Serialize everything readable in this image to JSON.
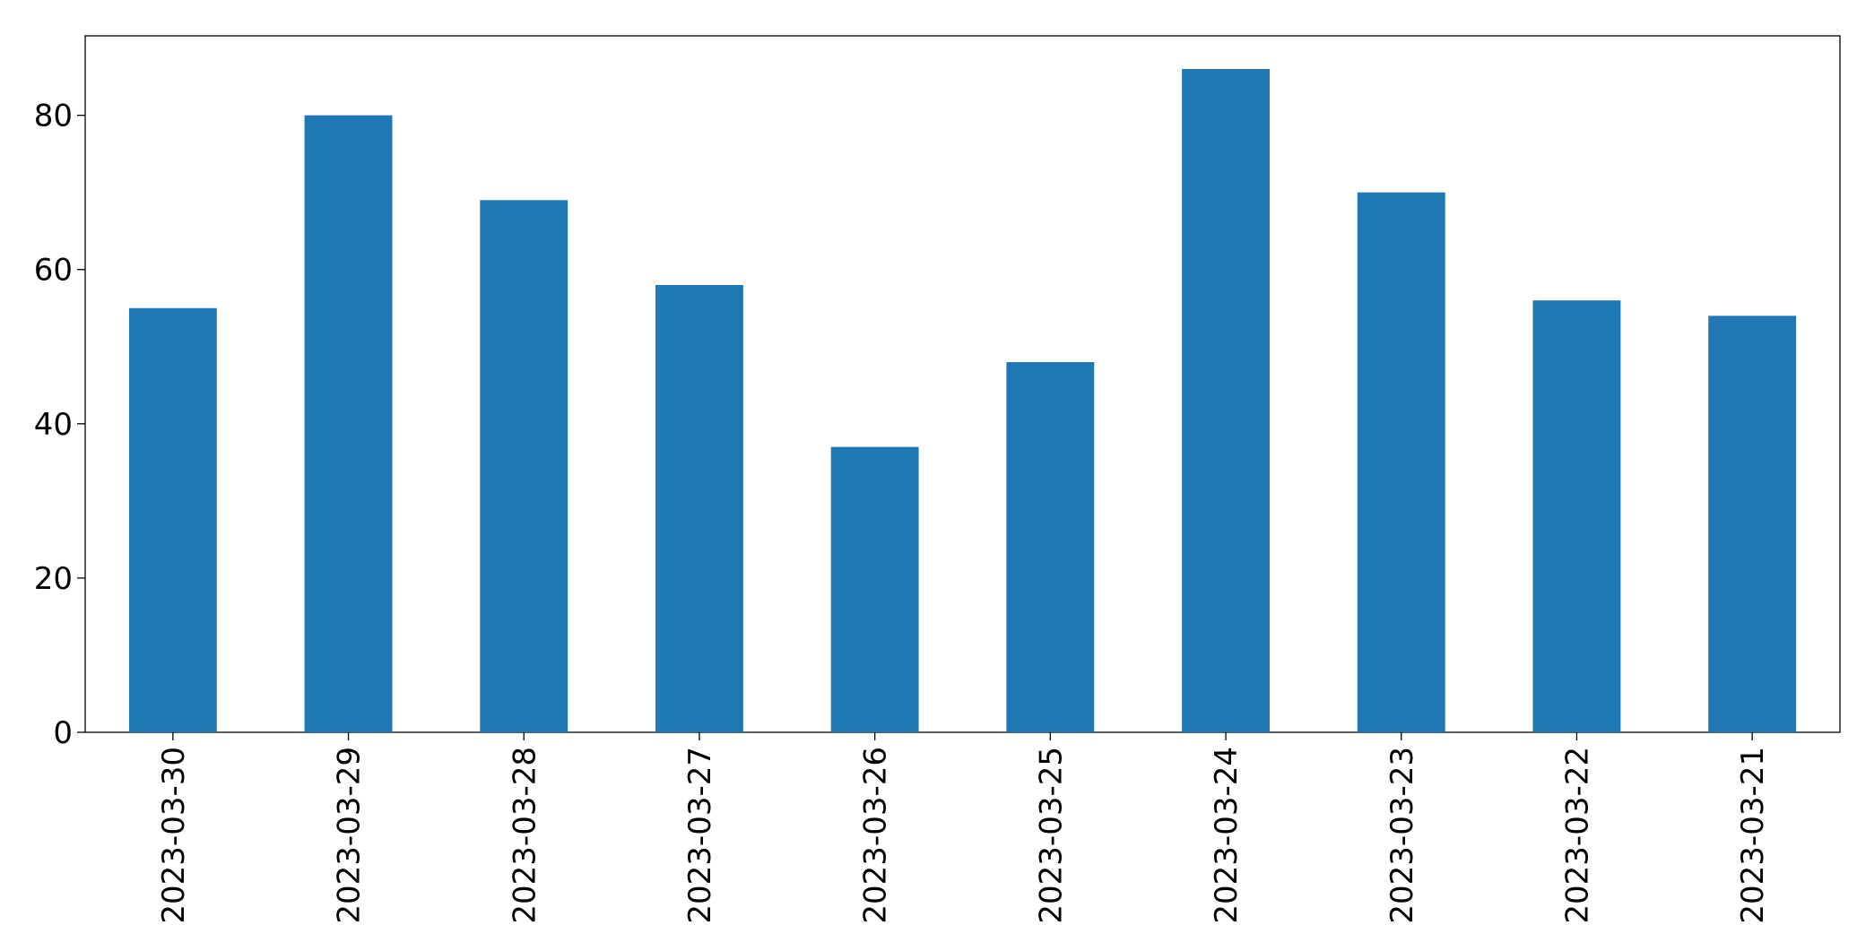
{
  "chart_data": {
    "type": "bar",
    "categories": [
      "2023-03-30",
      "2023-03-29",
      "2023-03-28",
      "2023-03-27",
      "2023-03-26",
      "2023-03-25",
      "2023-03-24",
      "2023-03-23",
      "2023-03-22",
      "2023-03-21"
    ],
    "values": [
      55,
      80,
      69,
      58,
      37,
      48,
      86,
      70,
      56,
      54
    ],
    "color": "#1f77b4",
    "ylim": [
      0,
      90.3
    ],
    "yticks": [
      0,
      20,
      40,
      60,
      80
    ],
    "grid": false
  }
}
